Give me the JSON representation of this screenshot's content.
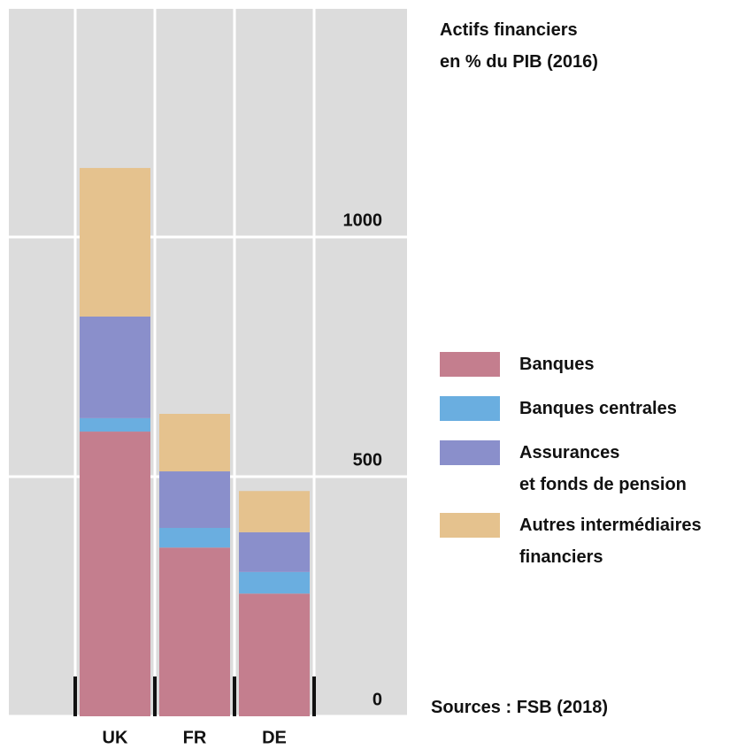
{
  "chart_data": {
    "type": "stacked-bar",
    "title": "Actifs financiers\nen % du PIB (2016)",
    "source": "Sources : FSB (2018)",
    "categories": [
      "UK",
      "FR",
      "DE"
    ],
    "series": [
      {
        "name": "Banques",
        "color": "#c47e8e",
        "values": [
          594,
          352,
          256
        ]
      },
      {
        "name": "Banques centrales",
        "color": "#6aaee0",
        "values": [
          28,
          41,
          45
        ]
      },
      {
        "name": "Assurances\net fonds de pension",
        "color": "#8a8fcb",
        "values": [
          212,
          118,
          83
        ]
      },
      {
        "name": "Autres intermédiaires\nfinanciers",
        "color": "#e5c28e",
        "values": [
          310,
          120,
          86
        ]
      }
    ],
    "ylim": [
      0,
      1476
    ],
    "yticks": [
      0,
      500,
      1000
    ],
    "grid": true
  }
}
